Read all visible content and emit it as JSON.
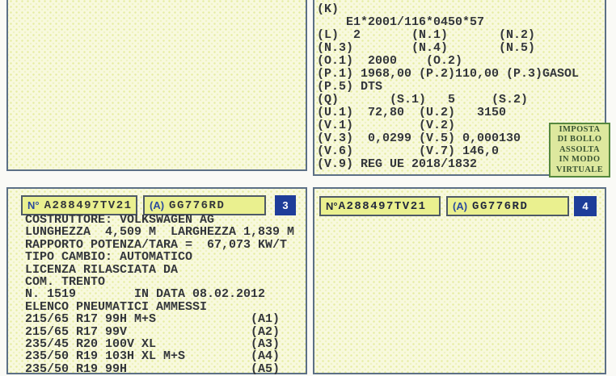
{
  "colors": {
    "panel_border": "#5c7086",
    "box_border": "#4e5a66",
    "panel_bg": "#f8f9de",
    "pattern_dot": "#e6eca2",
    "pattern_dot2": "#eff3c0",
    "header_box_bg": "#eaf08f",
    "badge_bg": "#1e3d99",
    "badge_text": "#ffffff",
    "label_blue": "#2b4a9e",
    "ink": "#33363b",
    "ink_navy": "#23293d",
    "stamp_bg": "#dde89e",
    "stamp_border": "#55883f",
    "stamp_text": "#3a5534",
    "page_bg": "#fafaf6"
  },
  "panels": {
    "top_left": {},
    "top_right": {
      "lines": [
        "(K)",
        "    E1*2001/116*0450*57",
        "(L)  2       (N.1)       (N.2)",
        "(N.3)        (N.4)       (N.5)",
        "(O.1)  2000    (O.2)",
        "(P.1) 1968,00 (P.2)110,00 (P.3)GASOL",
        "(P.5) DTS",
        "(Q)       (S.1)   5     (S.2)",
        "(U.1)  72,80  (U.2)   3150",
        "(V.1)         (V.2)",
        "(V.3)  0,0299 (V.5) 0,000130",
        "(V.6)         (V.7) 146,0",
        "(V.9) REG UE 2018/1832"
      ]
    },
    "bottom_left": {
      "header": {
        "doc_number_label": "N°",
        "doc_number": "A288497TV21",
        "field_a_label": "(A)",
        "plate": "GG776RD",
        "page_badge": "3"
      },
      "lines": [
        "COSTRUTTORE: VOLKSWAGEN AG",
        "LUNGHEZZA  4,509 M  LARGHEZZA 1,839 M",
        "RAPPORTO POTENZA/TARA =  67,073 KW/T",
        "TIPO CAMBIO: AUTOMATICO",
        "LICENZA RILASCIATA DA",
        "COM. TRENTO",
        "N. 1519        IN DATA 08.02.2012",
        "ELENCO PNEUMATICI AMMESSI",
        "215/65 R17 99H M+S             (A1)",
        "215/65 R17 99V                 (A2)",
        "235/45 R20 100V XL             (A3)",
        "235/50 R19 103H XL M+S         (A4)",
        "235/50 R19 99H                 (A5)"
      ]
    },
    "bottom_right": {
      "header": {
        "doc_number_label": "N°",
        "doc_number": "A288497TV21",
        "field_a_label": "(A)",
        "plate": "GG776RD",
        "page_badge": "4"
      }
    }
  },
  "stamp": {
    "lines": [
      "IMPOSTA",
      "DI BOLLO",
      "ASSOLTA",
      "IN MODO",
      "VIRTUALE"
    ]
  }
}
